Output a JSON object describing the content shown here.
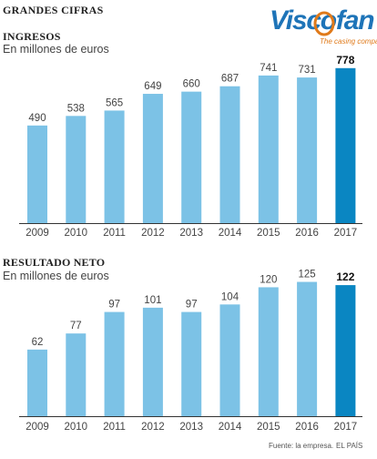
{
  "header": {
    "title": "GRANDES CIFRAS"
  },
  "logo": {
    "name": "Viscofan",
    "tagline": "The casing company",
    "word_color": "#1e74b8",
    "accent_color": "#e07a1a"
  },
  "colors": {
    "bar": "#7cc2e6",
    "bar_highlight": "#0a86c2",
    "axis": "#333333"
  },
  "chart_data": [
    {
      "type": "bar",
      "title": "INGRESOS",
      "subtitle": "En millones de euros",
      "categories": [
        "2009",
        "2010",
        "2011",
        "2012",
        "2013",
        "2014",
        "2015",
        "2016",
        "2017"
      ],
      "values": [
        490,
        538,
        565,
        649,
        660,
        687,
        741,
        731,
        778
      ],
      "highlight_index": 8,
      "ylim": [
        0,
        800
      ],
      "grid": false,
      "legend": "none"
    },
    {
      "type": "bar",
      "title": "RESULTADO NETO",
      "subtitle": "En millones de euros",
      "categories": [
        "2009",
        "2010",
        "2011",
        "2012",
        "2013",
        "2014",
        "2015",
        "2016",
        "2017"
      ],
      "values": [
        62,
        77,
        97,
        101,
        97,
        104,
        120,
        125,
        122
      ],
      "highlight_index": 8,
      "ylim": [
        0,
        128
      ],
      "grid": false,
      "legend": "none"
    }
  ],
  "footer": {
    "source": "Fuente: la empresa.",
    "brand": "EL PAÍS"
  }
}
